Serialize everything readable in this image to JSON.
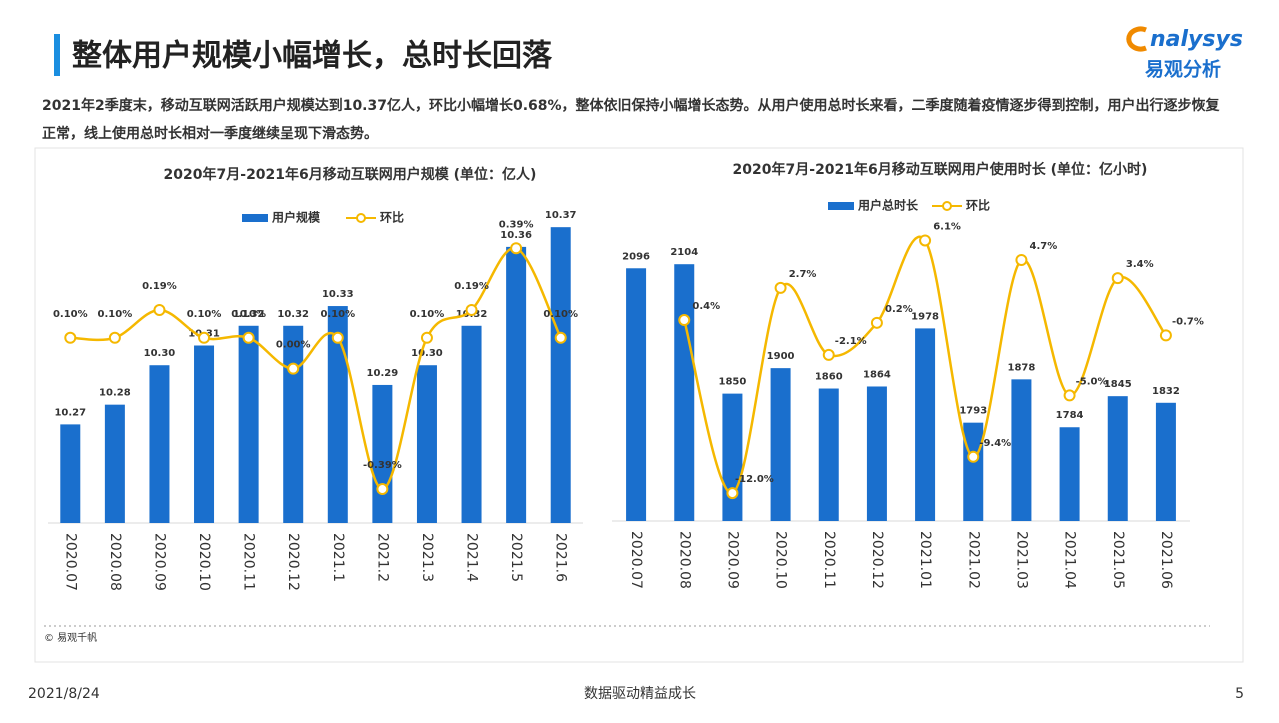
{
  "header": {
    "title": "整体用户规模小幅增长，总时长回落",
    "summary": "2021年2季度末，移动互联网活跃用户规模达到10.37亿人，环比小幅增长0.68%，整体依旧保持小幅增长态势。从用户使用总时长来看，二季度随着疫情逐步得到控制，用户出行逐步恢复正常，线上使用总时长相对一季度继续呈现下滑态势。",
    "logo_text": "nalysys",
    "logo_cn": "易观分析"
  },
  "chart_data": [
    {
      "type": "bar",
      "title": "2020年7月-2021年6月移动互联网用户规模 (单位：亿人)",
      "categories": [
        "2020.07",
        "2020.08",
        "2020.09",
        "2020.10",
        "2020.11",
        "2020.12",
        "2021.1",
        "2021.2",
        "2021.3",
        "2021.4",
        "2021.5",
        "2021.6"
      ],
      "ylim": [
        10.22,
        10.4
      ],
      "y2lim": [
        -0.5,
        0.65
      ],
      "series": [
        {
          "name": "用户规模",
          "color": "#1a6fcd",
          "values": [
            10.27,
            10.28,
            10.3,
            10.31,
            10.32,
            10.32,
            10.33,
            10.29,
            10.3,
            10.32,
            10.36,
            10.37
          ],
          "value_labels": [
            "10.27",
            "10.28",
            "10.30",
            "10.31",
            "10.32",
            "10.32",
            "10.33",
            "10.29",
            "10.30",
            "10.32",
            "10.36",
            "10.37"
          ]
        },
        {
          "name": "环比",
          "type": "line",
          "axis": "y2",
          "color": "#f5b800",
          "values": [
            0.1,
            0.1,
            0.19,
            0.1,
            0.1,
            0.0,
            0.1,
            -0.39,
            0.1,
            0.19,
            0.39,
            0.1
          ],
          "value_labels": [
            "0.10%",
            "0.10%",
            "0.19%",
            "0.10%",
            "0.10%",
            "0.00%",
            "0.10%",
            "-0.39%",
            "0.10%",
            "0.19%",
            "0.39%",
            "0.10%"
          ]
        }
      ]
    },
    {
      "type": "bar",
      "title": "2020年7月-2021年6月移动互联网用户使用时长 (单位：亿小时)",
      "categories": [
        "2020.07",
        "2020.08",
        "2020.09",
        "2020.10",
        "2020.11",
        "2020.12",
        "2021.01",
        "2021.02",
        "2021.03",
        "2021.04",
        "2021.05",
        "2021.06"
      ],
      "ylim": [
        1600,
        2230
      ],
      "y2lim": [
        -14,
        9
      ],
      "series": [
        {
          "name": "用户总时长",
          "color": "#1a6fcd",
          "values": [
            2096,
            2104,
            1850,
            1900,
            1860,
            1864,
            1978,
            1793,
            1878,
            1784,
            1845,
            1832
          ]
        },
        {
          "name": "环比",
          "type": "line",
          "axis": "y2",
          "color": "#f5b800",
          "values": [
            null,
            0.4,
            -12.0,
            2.7,
            -2.1,
            0.2,
            6.1,
            -9.4,
            4.7,
            -5.0,
            3.4,
            -0.7
          ],
          "value_labels": [
            null,
            "0.4%",
            "-12.0%",
            "2.7%",
            "-2.1%",
            "0.2%",
            "6.1%",
            "-9.4%",
            "4.7%",
            "-5.0%",
            "3.4%",
            "-0.7%"
          ]
        }
      ]
    }
  ],
  "source": "© 易观千帆",
  "footer": {
    "date": "2021/8/24",
    "slogan": "数据驱动精益成长",
    "page": "5"
  }
}
